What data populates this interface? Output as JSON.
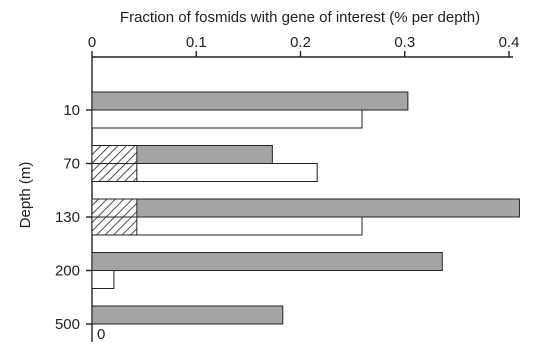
{
  "chart_data": {
    "type": "bar",
    "orientation": "horizontal",
    "title": "Fraction of fosmids with gene of interest (% per depth)",
    "xlabel": "Fraction of fosmids with gene of interest (% per depth)",
    "ylabel": "Depth (m)",
    "x_axis_position": "top",
    "xlim": [
      0,
      0.4
    ],
    "x_ticks": [
      "0",
      "0.1",
      "0.2",
      "0.3",
      "0.4"
    ],
    "categories": [
      "10",
      "70",
      "130",
      "200",
      "500"
    ],
    "series": [
      {
        "fill": "#a5a5a5",
        "values": [
          0.303,
          0.173,
          0.41,
          0.336,
          0.183
        ],
        "hatched_portion": [
          0,
          0.043,
          0.043,
          0,
          0
        ]
      },
      {
        "fill": "#ffffff",
        "values": [
          0.259,
          0.216,
          0.259,
          0.021,
          0
        ],
        "hatched_portion": [
          0,
          0.043,
          0.043,
          0,
          0
        ]
      }
    ],
    "annotations": [
      {
        "category": "500",
        "series": 1,
        "text": "0"
      }
    ],
    "grid": false,
    "legend": "none"
  }
}
